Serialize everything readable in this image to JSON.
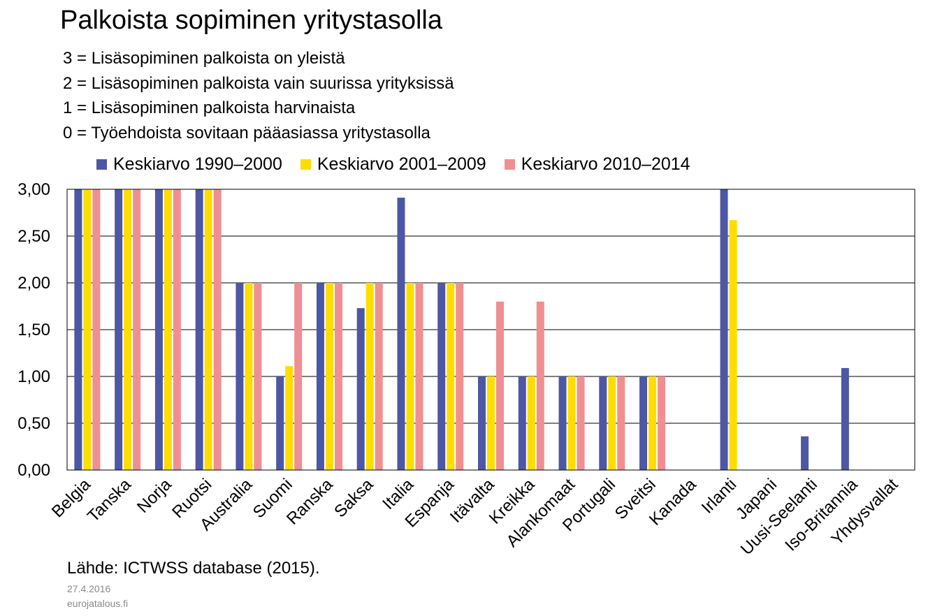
{
  "chart_data": {
    "type": "bar",
    "title": "Palkoista sopiminen yritystasolla",
    "scale_notes": [
      "3 = Lisäsopiminen palkoista on yleistä",
      "2 = Lisäsopiminen palkoista vain suurissa yrityksissä",
      "1 = Lisäsopiminen palkoista harvinaista",
      "0 = Työehdoista sovitaan pääasiassa yritystasolla"
    ],
    "categories": [
      "Belgia",
      "Tanska",
      "Norja",
      "Ruotsi",
      "Australia",
      "Suomi",
      "Ranska",
      "Saksa",
      "Italia",
      "Espanja",
      "Itävalta",
      "Kreikka",
      "Alankomaat",
      "Portugali",
      "Sveitsi",
      "Kanada",
      "Irlanti",
      "Japani",
      "Uusi-Seelanti",
      "Iso-Britannia",
      "Yhdysvallat"
    ],
    "series": [
      {
        "name": "Keskiarvo 1990–2000",
        "color": "#4e57a4",
        "values": [
          3,
          3,
          3,
          3,
          2,
          1,
          2,
          1.73,
          2.91,
          2,
          1,
          1,
          1,
          1,
          1,
          0,
          3,
          0,
          0.36,
          1.09,
          0
        ]
      },
      {
        "name": "Keskiarvo 2001–2009",
        "color": "#ffdd00",
        "values": [
          3,
          3,
          3,
          3,
          2,
          1.11,
          2,
          2,
          2,
          2,
          1,
          1,
          1,
          1,
          1,
          0,
          2.67,
          0,
          0,
          0,
          0
        ]
      },
      {
        "name": "Keskiarvo 2010–2014",
        "color": "#f08f92",
        "values": [
          3,
          3,
          3,
          3,
          2,
          2,
          2,
          2,
          2,
          2,
          1.8,
          1.8,
          1,
          1,
          1,
          0,
          0,
          0,
          0,
          0,
          0
        ]
      }
    ],
    "yticks": [
      "0,00",
      "0,50",
      "1,00",
      "1,50",
      "2,00",
      "2,50",
      "3,00"
    ],
    "ylim": [
      0,
      3
    ],
    "grid": true,
    "legend_position": "top",
    "source": "Lähde: ICTWSS database (2015).",
    "date": "27.4.2016",
    "site": "eurojatalous.fi"
  }
}
